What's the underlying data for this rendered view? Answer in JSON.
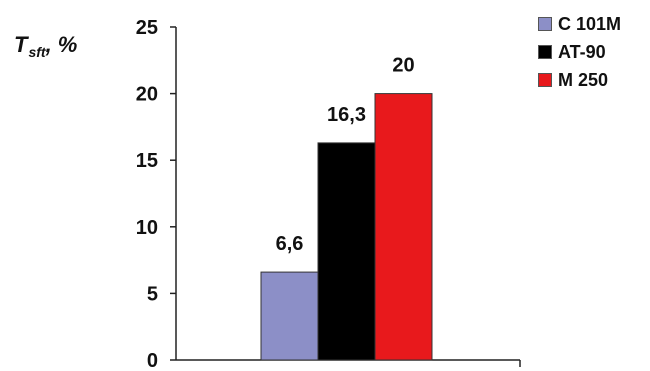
{
  "chart_data": {
    "type": "bar",
    "ylabel": {
      "main": "T",
      "sub": "sft",
      "unit": ", %"
    },
    "ylim": [
      0,
      25
    ],
    "yticks": [
      "0",
      "5",
      "10",
      "15",
      "20",
      "25"
    ],
    "grid": false,
    "legend_position": "top-right",
    "series": [
      {
        "name": "C 101M",
        "value": 6.6,
        "label": "6,6",
        "color": "#8c8fc7"
      },
      {
        "name": "AT-90",
        "value": 16.3,
        "label": "16,3",
        "color": "#000000"
      },
      {
        "name": "M 250",
        "value": 20,
        "label": "20",
        "color": "#e8191c"
      }
    ]
  }
}
